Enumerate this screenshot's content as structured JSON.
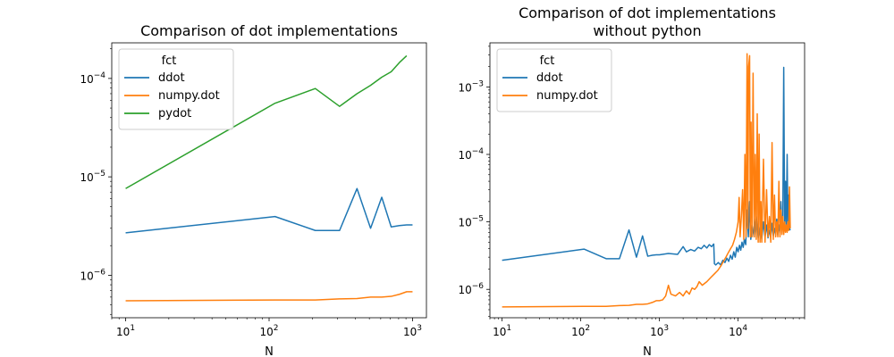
{
  "chart_data": [
    {
      "type": "line",
      "title": "Comparison of dot implementations",
      "xlabel": "N",
      "ylabel": "",
      "xscale": "log",
      "yscale": "log",
      "xlim": [
        8,
        1250
      ],
      "ylim": [
        3.7e-07,
        0.00023
      ],
      "legend": {
        "title": "fct",
        "placement": "top-left"
      },
      "xticks": [
        {
          "value": 10,
          "label": "10",
          "exp": "1"
        },
        {
          "value": 100,
          "label": "10",
          "exp": "2"
        },
        {
          "value": 1000,
          "label": "10",
          "exp": "3"
        }
      ],
      "yticks": [
        {
          "value": 1e-06,
          "label": "10",
          "exp": "−6"
        },
        {
          "value": 1e-05,
          "label": "10",
          "exp": "−5"
        },
        {
          "value": 0.0001,
          "label": "10",
          "exp": "−4"
        }
      ],
      "series": [
        {
          "name": "ddot",
          "color": "#1f77b4",
          "x": [
            10,
            110,
            210,
            310,
            410,
            510,
            610,
            710,
            810,
            910,
            1000
          ],
          "y": [
            2.7e-06,
            3.95e-06,
            2.85e-06,
            2.85e-06,
            7.6e-06,
            3e-06,
            6.2e-06,
            3.1e-06,
            3.2e-06,
            3.25e-06,
            3.25e-06
          ]
        },
        {
          "name": "numpy.dot",
          "color": "#ff7f0e",
          "x": [
            10,
            110,
            210,
            310,
            410,
            510,
            610,
            710,
            810,
            910,
            1000
          ],
          "y": [
            5.5e-07,
            5.6e-07,
            5.6e-07,
            5.75e-07,
            5.8e-07,
            6e-07,
            6e-07,
            6.1e-07,
            6.4e-07,
            6.8e-07,
            6.8e-07
          ]
        },
        {
          "name": "pydot",
          "color": "#2ca02c",
          "x": [
            10,
            110,
            210,
            310,
            410,
            510,
            610,
            710,
            810,
            910
          ],
          "y": [
            7.6e-06,
            5.6e-05,
            7.9e-05,
            5.2e-05,
            7e-05,
            8.5e-05,
            0.000103,
            0.000117,
            0.000145,
            0.00017
          ]
        }
      ]
    },
    {
      "type": "line",
      "title": "Comparison of dot implementations\nwithout python",
      "xlabel": "N",
      "ylabel": "",
      "xscale": "log",
      "yscale": "log",
      "xlim": [
        7,
        70000
      ],
      "ylim": [
        3.8e-07,
        0.0045
      ],
      "legend": {
        "title": "fct",
        "placement": "top-left"
      },
      "xticks": [
        {
          "value": 10,
          "label": "10",
          "exp": "1"
        },
        {
          "value": 100,
          "label": "10",
          "exp": "2"
        },
        {
          "value": 1000,
          "label": "10",
          "exp": "3"
        },
        {
          "value": 10000,
          "label": "10",
          "exp": "4"
        }
      ],
      "yticks": [
        {
          "value": 1e-06,
          "label": "10",
          "exp": "−6"
        },
        {
          "value": 1e-05,
          "label": "10",
          "exp": "−5"
        },
        {
          "value": 0.0001,
          "label": "10",
          "exp": "−4"
        },
        {
          "value": 0.001,
          "label": "10",
          "exp": "−3"
        }
      ],
      "series": [
        {
          "name": "ddot",
          "color": "#1f77b4",
          "x": [
            10,
            110,
            210,
            310,
            410,
            510,
            610,
            710,
            810,
            910,
            1000,
            1300,
            1700,
            2000,
            2200,
            2500,
            2800,
            3100,
            3400,
            3700,
            4000,
            4300,
            4600,
            4900,
            5000,
            5200,
            5600,
            6000,
            6400,
            6800,
            7200,
            7600,
            8000,
            8400,
            8800,
            9200,
            9600,
            10000,
            10400,
            10800,
            11200,
            11600,
            12000,
            12500,
            13000,
            13500,
            14000,
            14500,
            15000,
            16000,
            17000,
            18000,
            19000,
            20000,
            21000,
            22000,
            23000,
            24000,
            25000,
            26000,
            27000,
            28000,
            29000,
            30000,
            31000,
            32000,
            33000,
            34000,
            35000,
            36000,
            37000,
            38000,
            39000,
            40000,
            41000,
            42000,
            43000,
            44000,
            45000,
            46000
          ],
          "y": [
            2.7e-06,
            3.95e-06,
            2.85e-06,
            2.85e-06,
            7.6e-06,
            3e-06,
            6.2e-06,
            3.1e-06,
            3.2e-06,
            3.25e-06,
            3.25e-06,
            3.4e-06,
            3.3e-06,
            4.3e-06,
            3.6e-06,
            3.9e-06,
            3.7e-06,
            4.2e-06,
            4e-06,
            4.5e-06,
            4.1e-06,
            4.6e-06,
            4.3e-06,
            4.7e-06,
            2.4e-06,
            2.3e-06,
            2.5e-06,
            2.3e-06,
            2.7e-06,
            2.5e-06,
            2.9e-06,
            2.6e-06,
            3.2e-06,
            2.8e-06,
            3.6e-06,
            3e-06,
            4.2e-06,
            3.6e-06,
            4.5e-06,
            3.8e-06,
            5e-06,
            4.2e-06,
            5.5e-06,
            4.6e-06,
            1.5e-05,
            6e-06,
            2e-05,
            5.5e-06,
            9e-06,
            6e-06,
            1.2e-05,
            5.8e-06,
            8.5e-06,
            5.6e-06,
            1e-05,
            6e-06,
            9e-06,
            5.8e-06,
            7.5e-06,
            6e-06,
            9.5e-06,
            6.2e-06,
            8e-06,
            6.5e-06,
            1.1e-05,
            6.4e-06,
            9e-06,
            7e-06,
            2e-05,
            7.5e-06,
            1.1e-05,
            0.00195,
            8e-06,
            4e-05,
            8e-06,
            0.0001,
            7.5e-06,
            2.5e-05,
            8e-06,
            7.5e-06
          ]
        },
        {
          "name": "numpy.dot",
          "color": "#ff7f0e",
          "x": [
            10,
            110,
            210,
            310,
            410,
            510,
            610,
            710,
            810,
            910,
            1000,
            1100,
            1200,
            1300,
            1400,
            1600,
            1800,
            2000,
            2200,
            2400,
            2600,
            2800,
            3000,
            3200,
            3500,
            4000,
            4500,
            5000,
            5500,
            6000,
            6500,
            7000,
            7500,
            8000,
            8500,
            9000,
            9500,
            10000,
            10300,
            10600,
            11000,
            11400,
            11800,
            12200,
            12600,
            13000,
            13300,
            13600,
            14000,
            14300,
            14600,
            15000,
            15500,
            16000,
            16500,
            17000,
            17500,
            18000,
            18500,
            19000,
            19500,
            20000,
            21000,
            22000,
            23000,
            24000,
            25000,
            26000,
            27000,
            28000,
            29000,
            30000,
            31000,
            32000,
            33000,
            34000,
            35000,
            36000,
            37000,
            38000,
            39000,
            40000,
            41000,
            42000,
            43000,
            44000,
            45000,
            46000
          ],
          "y": [
            5.5e-07,
            5.6e-07,
            5.6e-07,
            5.75e-07,
            5.8e-07,
            6e-07,
            6e-07,
            6.1e-07,
            6.4e-07,
            6.8e-07,
            6.8e-07,
            7e-07,
            8e-07,
            1.15e-06,
            8.5e-07,
            8e-07,
            9e-07,
            8e-07,
            9.5e-07,
            8.5e-07,
            1.05e-06,
            1e-06,
            1.1e-06,
            1.3e-06,
            1.15e-06,
            1.3e-06,
            1.5e-06,
            1.7e-06,
            1.9e-06,
            2.2e-06,
            2.6e-06,
            3e-06,
            3.5e-06,
            4e-06,
            4.5e-06,
            5.5e-06,
            7e-06,
            1e-05,
            2.3e-05,
            6e-06,
            1.2e-05,
            3e-05,
            5.5e-06,
            0.0001,
            6e-06,
            0.0031,
            8e-06,
            0.002,
            0.0029,
            6e-06,
            0.0003,
            6e-06,
            0.0016,
            6e-06,
            0.0001,
            5.5e-06,
            0.0004,
            5e-06,
            0.0002,
            5e-06,
            2e-05,
            5e-06,
            8.5e-05,
            5e-06,
            3e-05,
            6e-06,
            1.2e-05,
            5e-06,
            0.00015,
            5.5e-06,
            2.5e-05,
            6e-06,
            1e-05,
            6e-06,
            4e-05,
            6e-06,
            1.5e-05,
            6.5e-06,
            1.2e-05,
            6.5e-06,
            1e-05,
            7e-06,
            9e-06,
            7e-06,
            1e-05,
            7.5e-06,
            3.3e-05,
            8e-06
          ]
        }
      ]
    }
  ]
}
